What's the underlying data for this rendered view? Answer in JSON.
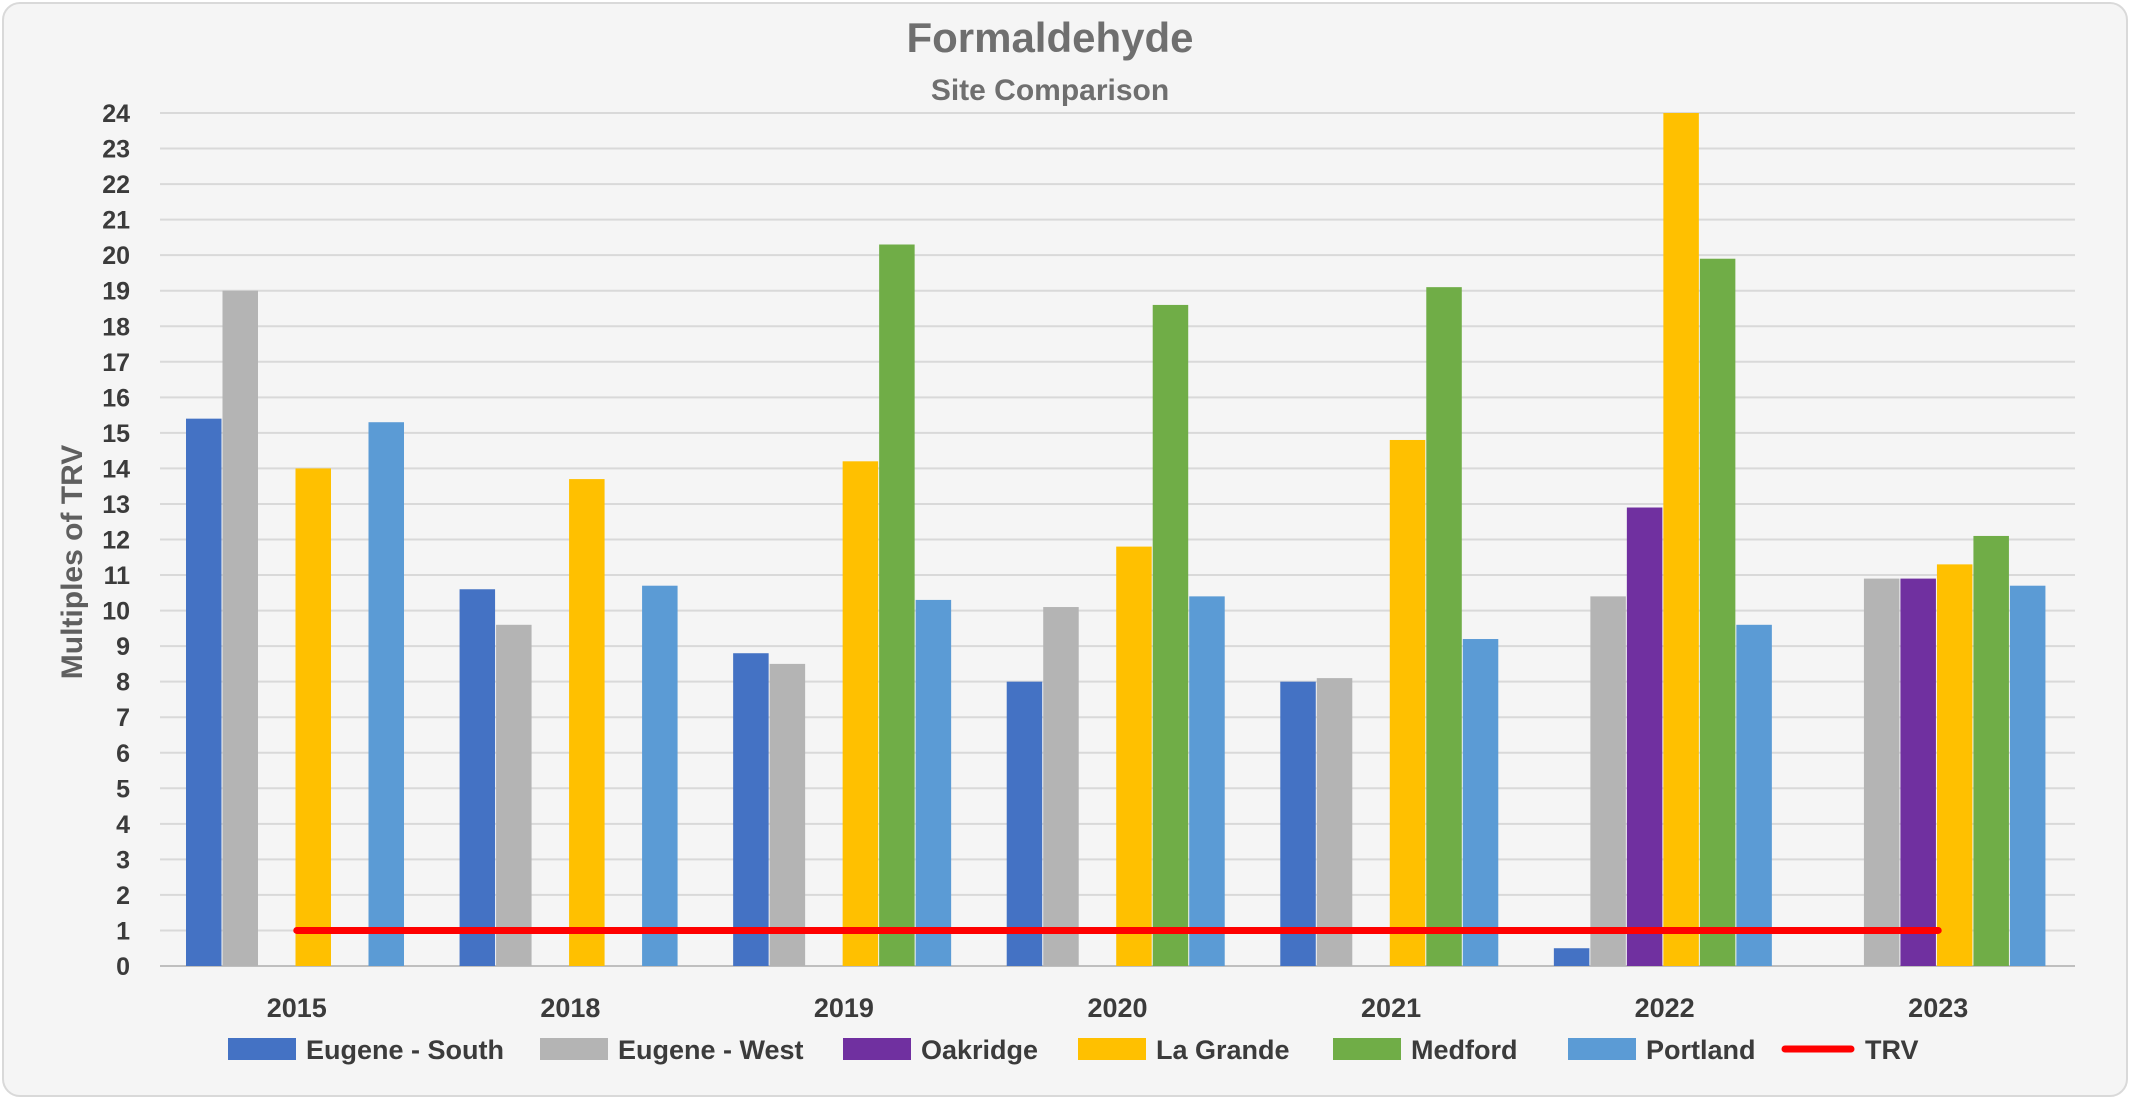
{
  "chart_data": {
    "type": "bar",
    "title": "Formaldehyde",
    "subtitle": "Site Comparison",
    "ylabel": "Multiples of TRV",
    "xlabel": "",
    "ylim": [
      0,
      24
    ],
    "yticks": [
      0,
      1,
      2,
      3,
      4,
      5,
      6,
      7,
      8,
      9,
      10,
      11,
      12,
      13,
      14,
      15,
      16,
      17,
      18,
      19,
      20,
      21,
      22,
      23,
      24
    ],
    "grid": true,
    "legend_position": "bottom",
    "categories": [
      "2015",
      "2018",
      "2019",
      "2020",
      "2021",
      "2022",
      "2023"
    ],
    "series": [
      {
        "name": "Eugene - South",
        "color": "#4472c4",
        "values": [
          15.4,
          10.6,
          8.8,
          8.0,
          8.0,
          0.5,
          null
        ]
      },
      {
        "name": "Eugene - West",
        "color": "#b4b4b4",
        "values": [
          19.0,
          9.6,
          8.5,
          10.1,
          8.1,
          10.4,
          10.9
        ]
      },
      {
        "name": "Oakridge",
        "color": "#7030a0",
        "values": [
          null,
          null,
          null,
          null,
          null,
          12.9,
          10.9
        ]
      },
      {
        "name": "La Grande",
        "color": "#ffc000",
        "values": [
          14.0,
          13.7,
          14.2,
          11.8,
          14.8,
          24.0,
          11.3
        ]
      },
      {
        "name": "Medford",
        "color": "#70ad47",
        "values": [
          null,
          null,
          20.3,
          18.6,
          19.1,
          19.9,
          12.1
        ]
      },
      {
        "name": "Portland",
        "color": "#5b9bd5",
        "values": [
          15.3,
          10.7,
          10.3,
          10.4,
          9.2,
          9.6,
          10.7
        ]
      }
    ],
    "reference_line": {
      "name": "TRV",
      "value": 1,
      "color": "#ff0000"
    }
  }
}
